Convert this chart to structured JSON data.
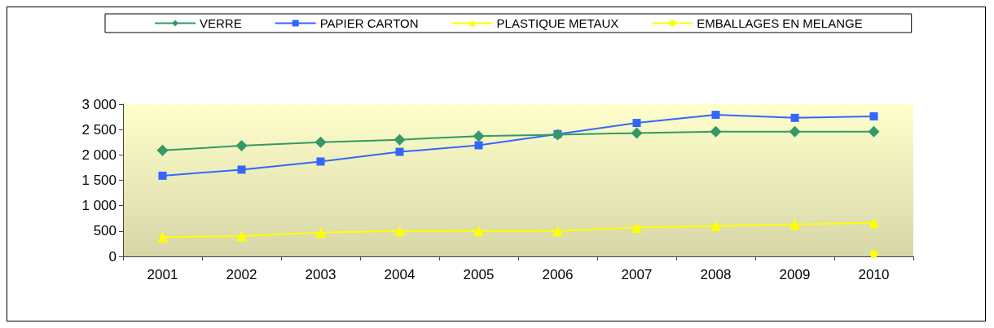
{
  "chart_data": {
    "type": "line",
    "categories": [
      "2001",
      "2002",
      "2003",
      "2004",
      "2005",
      "2006",
      "2007",
      "2008",
      "2009",
      "2010"
    ],
    "series": [
      {
        "name": "VERRE",
        "color": "#339966",
        "marker": "diamond",
        "values": [
          2090,
          2180,
          2250,
          2300,
          2370,
          2400,
          2430,
          2460,
          2460,
          2460
        ]
      },
      {
        "name": "PAPIER CARTON",
        "color": "#3366ff",
        "marker": "square",
        "values": [
          1590,
          1710,
          1870,
          2060,
          2190,
          2410,
          2630,
          2790,
          2730,
          2760
        ]
      },
      {
        "name": "PLASTIQUE METAUX",
        "color": "#ffff00",
        "marker": "triangle",
        "values": [
          380,
          400,
          470,
          500,
          500,
          500,
          570,
          600,
          630,
          660
        ]
      },
      {
        "name": "EMBALLAGES EN MELANGE",
        "color": "#ffff00",
        "marker": "circle",
        "values": [
          null,
          null,
          null,
          null,
          null,
          null,
          null,
          null,
          null,
          50
        ]
      }
    ],
    "ylim": [
      0,
      3000
    ],
    "yticks": [
      {
        "value": 0,
        "label": "0"
      },
      {
        "value": 500,
        "label": "500"
      },
      {
        "value": 1000,
        "label": "1 000"
      },
      {
        "value": 1500,
        "label": "1 500"
      },
      {
        "value": 2000,
        "label": "2 000"
      },
      {
        "value": 2500,
        "label": "2 500"
      },
      {
        "value": 3000,
        "label": "3 000"
      }
    ],
    "grid": false,
    "legend": "top"
  }
}
